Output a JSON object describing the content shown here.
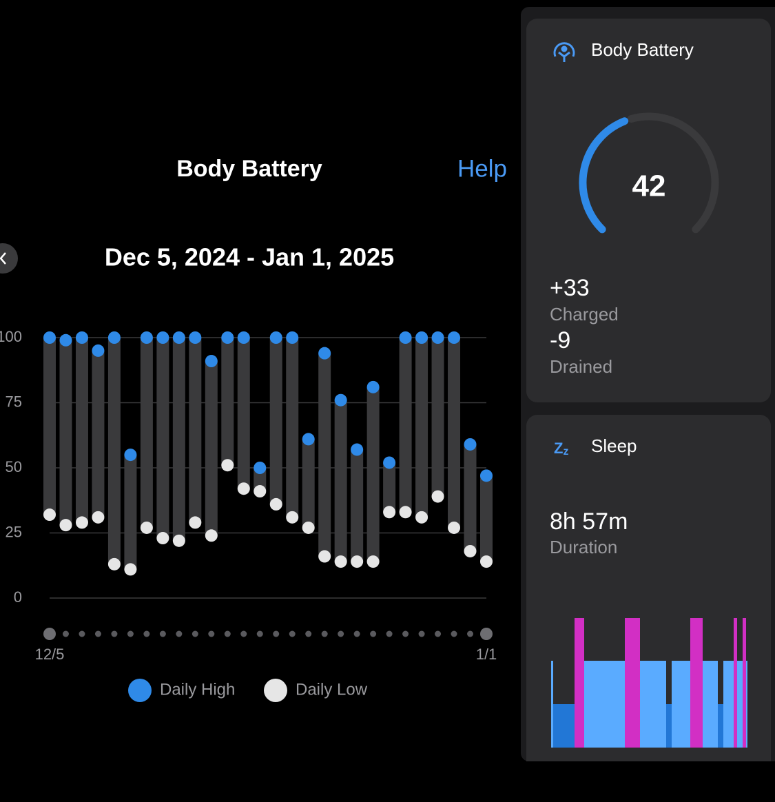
{
  "header": {
    "title": "Body Battery",
    "help": "Help",
    "date_range": "Dec 5, 2024 - Jan 1, 2025"
  },
  "chart_data": {
    "type": "range",
    "categories": [
      "12/5",
      null,
      null,
      null,
      null,
      null,
      null,
      null,
      null,
      null,
      null,
      null,
      null,
      null,
      null,
      null,
      null,
      null,
      null,
      null,
      null,
      null,
      null,
      null,
      null,
      null,
      null,
      "1/1"
    ],
    "series": [
      {
        "name": "Daily High",
        "color": "#2f8ae8",
        "values": [
          100,
          99,
          100,
          95,
          100,
          55,
          100,
          100,
          100,
          100,
          91,
          100,
          100,
          50,
          100,
          100,
          61,
          94,
          76,
          57,
          81,
          52,
          100,
          100,
          100,
          100,
          59,
          47
        ]
      },
      {
        "name": "Daily Low",
        "color": "#e6e6e6",
        "values": [
          32,
          28,
          29,
          31,
          13,
          11,
          27,
          23,
          22,
          29,
          24,
          51,
          42,
          41,
          36,
          31,
          27,
          16,
          14,
          14,
          14,
          33,
          33,
          31,
          39,
          27,
          18,
          14
        ]
      }
    ],
    "ylim": [
      0,
      100
    ],
    "yticks": [
      0,
      25,
      50,
      75,
      100
    ],
    "grid": true
  },
  "body_battery_card": {
    "title": "Body Battery",
    "value": 42,
    "charged": "+33",
    "charged_label": "Charged",
    "drained": "-9",
    "drained_label": "Drained"
  },
  "sleep_card": {
    "title": "Sleep",
    "duration": "8h 57m",
    "duration_label": "Duration"
  }
}
